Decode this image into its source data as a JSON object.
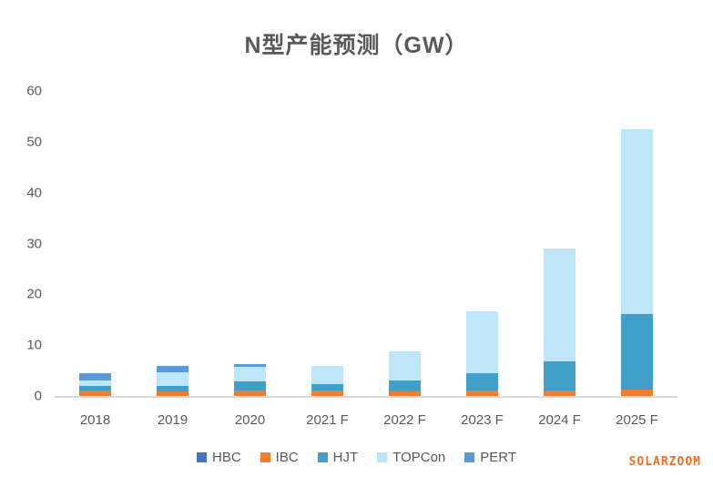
{
  "title": "N型产能预测（GW）",
  "watermark": "SOLARZOOM",
  "colors": {
    "title_text": "#595959",
    "axis_text": "#595959",
    "axis_line": "#d9d9d9",
    "watermark_text": "#f26f21"
  },
  "chart_data": {
    "type": "bar",
    "stacked": true,
    "title": "N型产能预测（GW）",
    "categories": [
      "2018",
      "2019",
      "2020",
      "2021 F",
      "2022 F",
      "2023 F",
      "2024 F",
      "2025 F"
    ],
    "series": [
      {
        "name": "HBC",
        "color": "#4472c4",
        "values": [
          0,
          0,
          0,
          0,
          0,
          0,
          0,
          0
        ]
      },
      {
        "name": "IBC",
        "color": "#ed7d31",
        "values": [
          1.1,
          0.9,
          1.0,
          1.0,
          0.9,
          1.0,
          1.0,
          1.3
        ]
      },
      {
        "name": "HJT",
        "color": "#41a0c9",
        "values": [
          0.9,
          1.1,
          1.8,
          1.3,
          2.2,
          3.4,
          5.8,
          14.8
        ]
      },
      {
        "name": "TOPCon",
        "color": "#bfe5f8",
        "values": [
          1.1,
          2.6,
          3.0,
          3.7,
          5.7,
          12.3,
          22.2,
          36.4
        ]
      },
      {
        "name": "PERT",
        "color": "#5b9bd5",
        "values": [
          1.4,
          1.4,
          0.5,
          0,
          0,
          0,
          0,
          0
        ]
      }
    ],
    "totals": [
      4.5,
      6.0,
      6.3,
      6.0,
      8.8,
      16.7,
      29.0,
      52.5
    ],
    "ylim": [
      0,
      60
    ],
    "yticks": [
      0,
      10,
      20,
      30,
      40,
      50,
      60
    ],
    "grid": false,
    "legend_position": "bottom",
    "xlabel": "",
    "ylabel": ""
  }
}
